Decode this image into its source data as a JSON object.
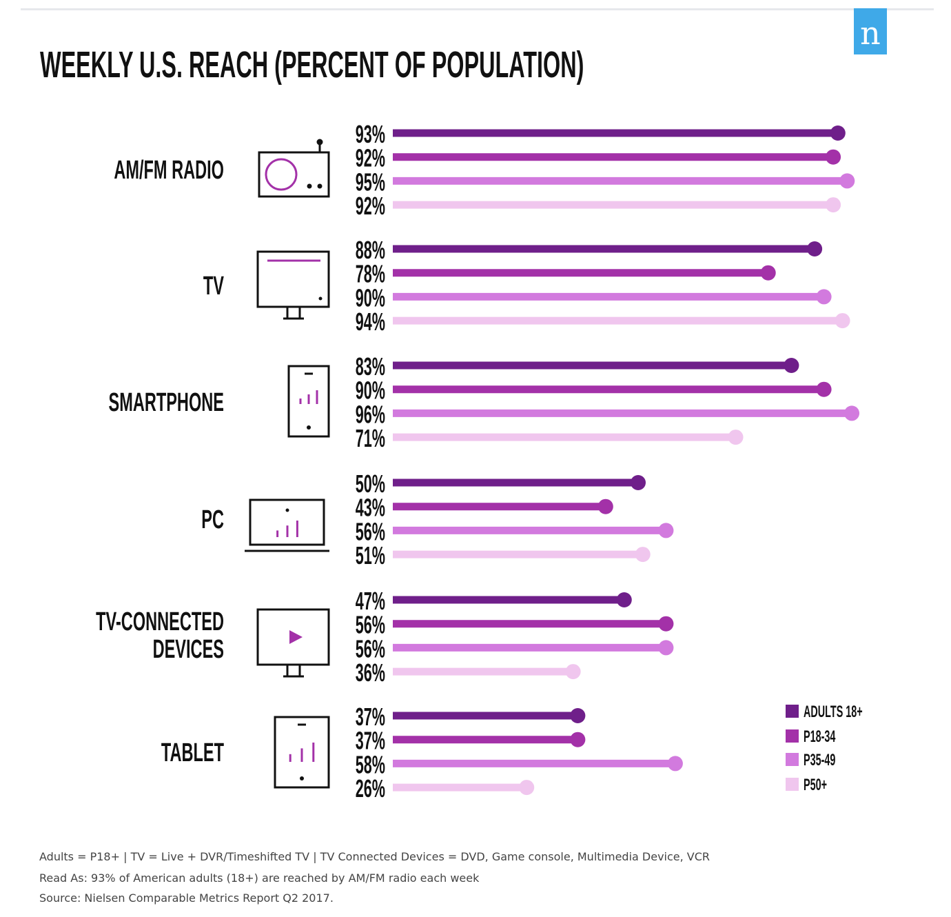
{
  "logo": "n",
  "chart_data": {
    "type": "bar",
    "orientation": "horizontal",
    "title": "WEEKLY U.S. REACH (PERCENT OF POPULATION)",
    "categories": [
      "AM/FM RADIO",
      "TV",
      "SMARTPHONE",
      "PC",
      "TV-CONNECTED DEVICES",
      "TABLET"
    ],
    "category_icons": [
      "radio-icon",
      "tv-icon",
      "smartphone-icon",
      "pc-icon",
      "tv-connected-device-icon",
      "tablet-icon"
    ],
    "series": [
      {
        "name": "ADULTS 18+",
        "color": "#6f1f8a",
        "values": [
          93,
          88,
          83,
          50,
          47,
          37
        ]
      },
      {
        "name": "P18-34",
        "color": "#a331a8",
        "values": [
          92,
          78,
          90,
          43,
          56,
          37
        ]
      },
      {
        "name": "P35-49",
        "color": "#d27ade",
        "values": [
          95,
          90,
          96,
          56,
          56,
          58
        ]
      },
      {
        "name": "P50+",
        "color": "#f0c6ee",
        "values": [
          92,
          94,
          71,
          51,
          36,
          26
        ]
      }
    ],
    "value_format": "percent",
    "xlim": [
      0,
      100
    ],
    "grid": false,
    "legend_position": "bottom-right"
  },
  "footnotes": [
    "Adults = P18+ | TV = Live + DVR/Timeshifted TV | TV Connected Devices = DVD, Game console, Multimedia Device, VCR",
    "Read As: 93% of American adults (18+) are reached by AM/FM radio each week",
    "Source: Nielsen Comparable Metrics Report Q2 2017."
  ]
}
